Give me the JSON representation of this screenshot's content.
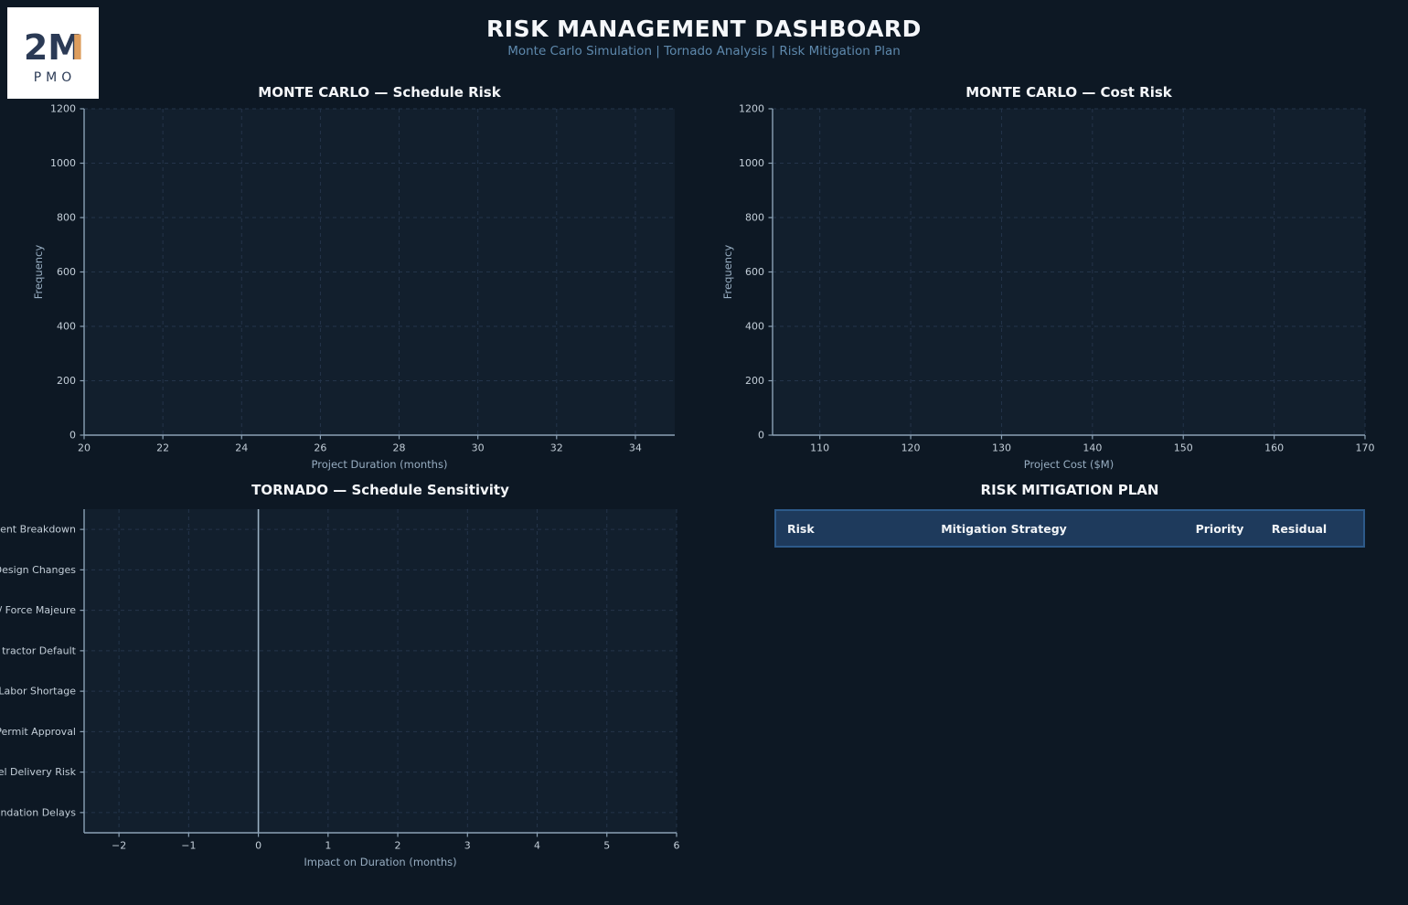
{
  "colors": {
    "page_bg": "#0d1824",
    "plot_bg": "#121f2d",
    "grid": "#24344a",
    "spine": "#8ba1b5",
    "tick_label": "#c3ced8",
    "axis_label": "#97adc1",
    "title": "#f5f7fa",
    "subtitle": "#5e89ad",
    "zero_line": "#9bb0c3",
    "table_header_bg": "#1e3a5c",
    "table_border": "#2d5a8a",
    "logo_bg": "#ffffff",
    "logo_navy": "#2b3a55",
    "logo_orange": "#dd9d5d"
  },
  "logo": {
    "line1": "2M",
    "line2": "PMO"
  },
  "header": {
    "title": "RISK MANAGEMENT DASHBOARD",
    "subtitle": "Monte Carlo Simulation  |  Tornado Analysis  |  Risk Mitigation Plan"
  },
  "table": {
    "title": "RISK MITIGATION PLAN",
    "columns": [
      "Risk",
      "Mitigation Strategy",
      "Priority",
      "Residual"
    ],
    "rows": []
  },
  "chart_data": [
    {
      "id": "monte-carlo-schedule",
      "type": "bar",
      "title": "MONTE CARLO — Schedule Risk",
      "xlabel": "Project Duration (months)",
      "ylabel": "Frequency",
      "xlim": [
        20,
        35
      ],
      "ylim": [
        0,
        1200
      ],
      "xticks": [
        20,
        22,
        24,
        26,
        28,
        30,
        32,
        34
      ],
      "yticks": [
        0,
        200,
        400,
        600,
        800,
        1000,
        1200
      ],
      "grid": true,
      "legend": false,
      "values": []
    },
    {
      "id": "monte-carlo-cost",
      "type": "bar",
      "title": "MONTE CARLO — Cost Risk",
      "xlabel": "Project Cost ($M)",
      "ylabel": "Frequency",
      "xlim": [
        104.8,
        170
      ],
      "ylim": [
        0,
        1200
      ],
      "xticks": [
        110,
        120,
        130,
        140,
        150,
        160,
        170
      ],
      "yticks": [
        0,
        200,
        400,
        600,
        800,
        1000,
        1200
      ],
      "grid": true,
      "legend": false,
      "values": []
    },
    {
      "id": "tornado-schedule-sensitivity",
      "type": "bar",
      "orientation": "horizontal",
      "title": "TORNADO — Schedule Sensitivity",
      "xlabel": "Impact on Duration (months)",
      "categories": [
        "ent Breakdown",
        "Design Changes",
        "/ Force Majeure",
        "tractor Default",
        "Labor Shortage",
        "Permit Approval",
        "el Delivery Risk",
        "ndation Delays"
      ],
      "xlim": [
        -2.5,
        6
      ],
      "xticks": [
        -2,
        -1,
        0,
        1,
        2,
        3,
        4,
        5,
        6
      ],
      "xtick_labels": [
        "−2",
        "−1",
        "0",
        "1",
        "2",
        "3",
        "4",
        "5",
        "6"
      ],
      "zero_line": true,
      "grid": true,
      "legend": false,
      "values": []
    }
  ]
}
